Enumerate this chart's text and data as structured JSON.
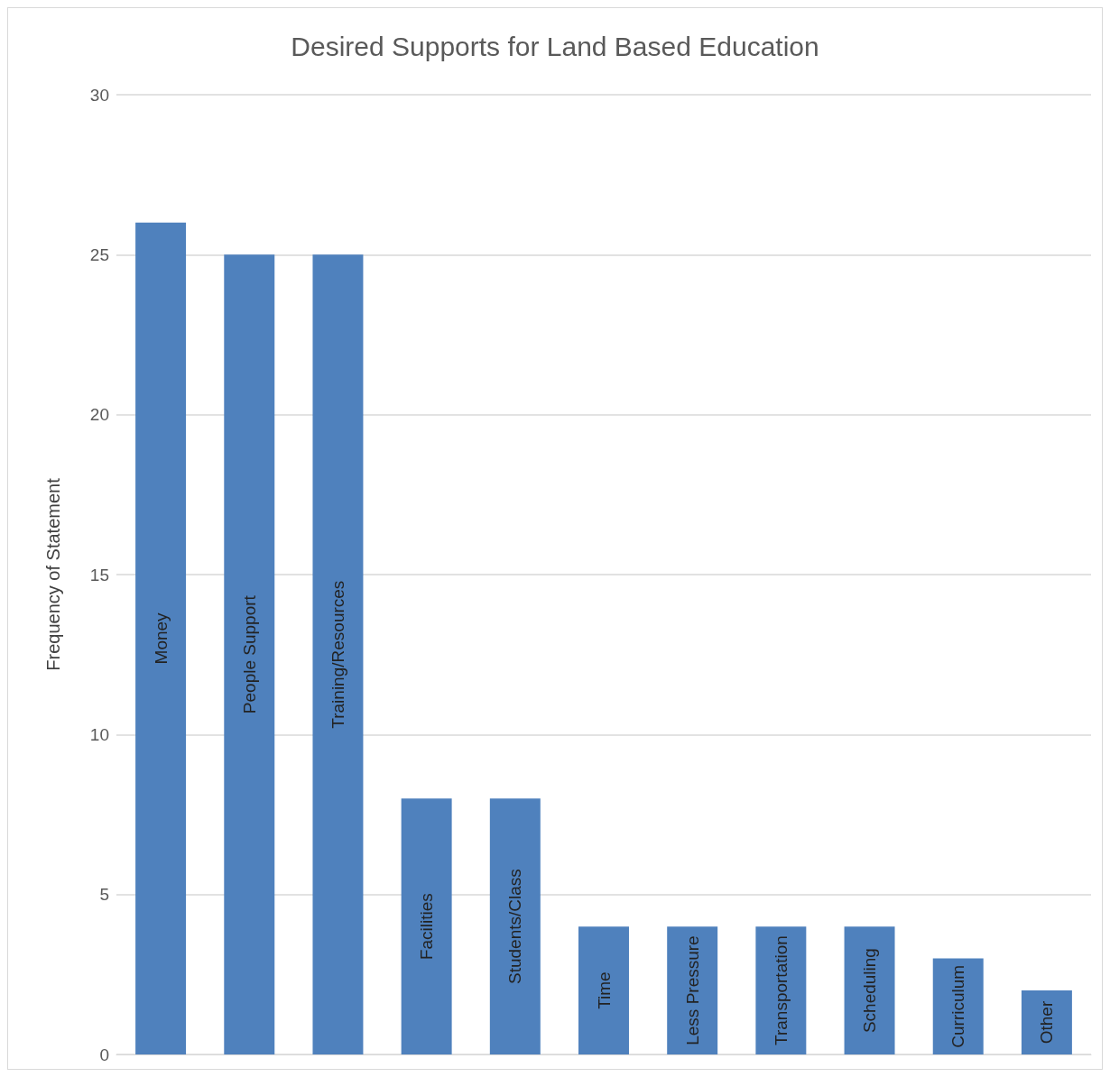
{
  "chart_data": {
    "type": "bar",
    "title": "Desired Supports for Land Based Education",
    "ylabel": "Frequency of Statement",
    "categories": [
      "Money",
      "People Support",
      "Training/Resources",
      "Facilities",
      "Students/Class",
      "Time",
      "Less Pressure",
      "Transportation",
      "Scheduling",
      "Curriculum",
      "Other"
    ],
    "values": [
      26,
      25,
      25,
      8,
      8,
      4,
      4,
      4,
      4,
      3,
      2
    ],
    "color": "#4f81bd",
    "ylim": [
      0,
      30
    ],
    "yticks": [
      0,
      5,
      10,
      15,
      20,
      25,
      30
    ],
    "grid": "y"
  }
}
